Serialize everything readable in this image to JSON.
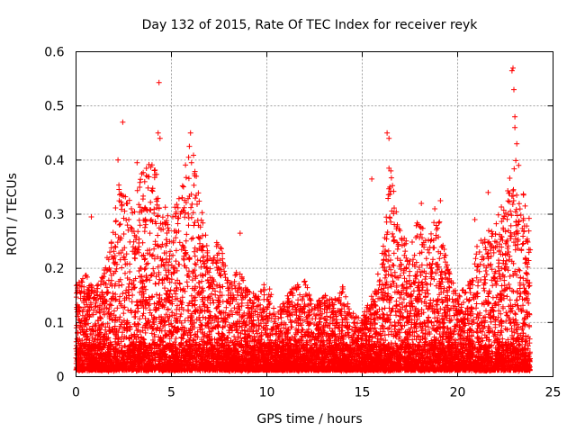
{
  "chart_data": {
    "type": "scatter",
    "title": "Day 132 of 2015, Rate Of TEC Index for receiver reyk",
    "xlabel": "GPS time / hours",
    "ylabel": "ROTI / TECUs",
    "xlim": [
      0,
      25
    ],
    "ylim": [
      0,
      0.6
    ],
    "xticks": [
      0,
      5,
      10,
      15,
      20,
      25
    ],
    "yticks": [
      0,
      0.1,
      0.2,
      0.3,
      0.4,
      0.5,
      0.6
    ],
    "xtick_labels": [
      "0",
      "5",
      "10",
      "15",
      "20",
      "25"
    ],
    "ytick_labels": [
      "0",
      "0.1",
      "0.2",
      "0.3",
      "0.4",
      "0.5",
      "0.6"
    ],
    "grid": true,
    "marker": "+",
    "series": [
      {
        "name": "ROTI",
        "color": "#ff0000",
        "envelope_x": [
          0,
          0.5,
          1,
          1.5,
          2,
          2.2,
          2.5,
          3,
          3.5,
          4,
          4.5,
          5,
          5.5,
          6,
          6.5,
          7,
          7.5,
          8,
          8.5,
          9,
          9.5,
          10,
          10.5,
          11,
          11.5,
          12,
          12.5,
          13,
          13.5,
          14,
          14.5,
          15,
          15.5,
          16,
          16.5,
          17,
          17.5,
          18,
          18.5,
          19,
          19.5,
          20,
          20.5,
          21,
          21.5,
          22,
          22.5,
          23,
          23.5,
          23.8
        ],
        "envelope_y": [
          0.17,
          0.19,
          0.16,
          0.2,
          0.28,
          0.4,
          0.35,
          0.31,
          0.39,
          0.41,
          0.33,
          0.29,
          0.37,
          0.44,
          0.34,
          0.22,
          0.26,
          0.18,
          0.2,
          0.16,
          0.15,
          0.18,
          0.12,
          0.15,
          0.17,
          0.18,
          0.13,
          0.16,
          0.14,
          0.17,
          0.12,
          0.11,
          0.15,
          0.22,
          0.38,
          0.27,
          0.24,
          0.3,
          0.28,
          0.3,
          0.2,
          0.15,
          0.17,
          0.24,
          0.27,
          0.29,
          0.33,
          0.42,
          0.33,
          0.3
        ],
        "points": [
          [
            4.35,
            0.543
          ],
          [
            2.45,
            0.47
          ],
          [
            22.9,
            0.57
          ],
          [
            22.85,
            0.565
          ],
          [
            22.95,
            0.53
          ],
          [
            23.0,
            0.48
          ],
          [
            4.3,
            0.45
          ],
          [
            4.4,
            0.44
          ],
          [
            6.0,
            0.45
          ],
          [
            16.3,
            0.45
          ],
          [
            16.4,
            0.44
          ],
          [
            23.0,
            0.46
          ],
          [
            16.4,
            0.385
          ],
          [
            16.5,
            0.38
          ],
          [
            23.1,
            0.43
          ],
          [
            5.9,
            0.405
          ],
          [
            6.05,
            0.395
          ],
          [
            23.2,
            0.39
          ],
          [
            2.2,
            0.4
          ],
          [
            3.2,
            0.395
          ],
          [
            15.5,
            0.365
          ],
          [
            19.1,
            0.325
          ],
          [
            21.6,
            0.34
          ],
          [
            0.8,
            0.295
          ],
          [
            8.6,
            0.265
          ],
          [
            3.6,
            0.36
          ],
          [
            16.45,
            0.35
          ],
          [
            18.1,
            0.32
          ],
          [
            18.8,
            0.31
          ],
          [
            20.9,
            0.29
          ]
        ]
      }
    ]
  }
}
